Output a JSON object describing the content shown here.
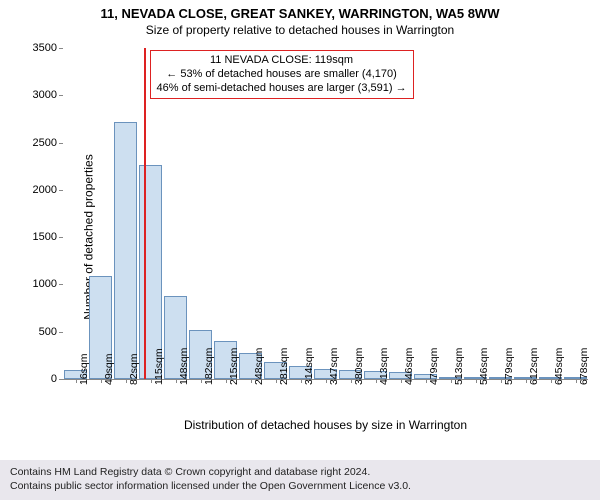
{
  "title_line1": "11, NEVADA CLOSE, GREAT SANKEY, WARRINGTON, WA5 8WW",
  "title_line2": "Size of property relative to detached houses in Warrington",
  "chart": {
    "type": "bar",
    "ylabel": "Number of detached properties",
    "xlabel": "Distribution of detached houses by size in Warrington",
    "ylim_max": 3500,
    "ytick_step": 500,
    "yticks": [
      0,
      500,
      1000,
      1500,
      2000,
      2500,
      3000,
      3500
    ],
    "bar_fill": "#cddff0",
    "bar_stroke": "#6b93bd",
    "background": "#ffffff",
    "xtick_labels": [
      "16sqm",
      "49sqm",
      "82sqm",
      "115sqm",
      "148sqm",
      "182sqm",
      "215sqm",
      "248sqm",
      "281sqm",
      "314sqm",
      "347sqm",
      "380sqm",
      "413sqm",
      "446sqm",
      "479sqm",
      "513sqm",
      "546sqm",
      "579sqm",
      "612sqm",
      "645sqm",
      "678sqm"
    ],
    "values": [
      95,
      1090,
      2720,
      2260,
      880,
      520,
      400,
      270,
      180,
      140,
      110,
      95,
      80,
      70,
      50,
      15,
      8,
      6,
      5,
      4,
      3
    ],
    "bar_gap_pct": 6
  },
  "marker": {
    "x_index": 3,
    "line_color": "#d22",
    "line_width": 2
  },
  "annotation": {
    "border_color": "#d22",
    "lines": [
      "11 NEVADA CLOSE: 119sqm",
      "← 53% of detached houses are smaller (4,170)",
      "46% of semi-detached houses are larger (3,591) →"
    ]
  },
  "footer": {
    "line1": "Contains HM Land Registry data © Crown copyright and database right 2024.",
    "line2": "Contains public sector information licensed under the Open Government Licence v3.0."
  }
}
